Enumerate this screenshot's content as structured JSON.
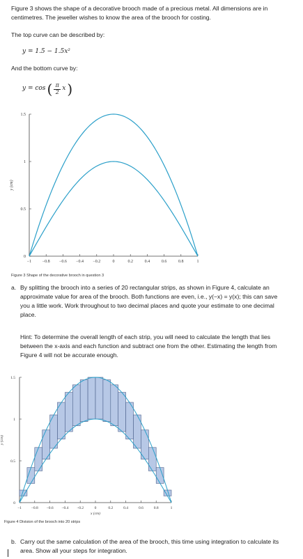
{
  "intro": "Figure 3 shows the shape of a decorative brooch made of a precious metal. All dimensions are in centimetres. The jeweller wishes to know the area of the brooch for costing.",
  "top_curve_label": "The top curve can be described by:",
  "top_curve_eq": "y = 1.5 − 1.5x²",
  "bottom_curve_label": "And the bottom curve by:",
  "bottom_curve_eq_lhs": "y = cos",
  "bottom_curve_eq_frac_num": "π",
  "bottom_curve_eq_frac_den": "2",
  "bottom_curve_eq_var": "x",
  "figure3_caption": "Figure 3   Shape of the decorative brooch in question 3",
  "question_a_num": "a.",
  "question_a": "By splitting the brooch into a series of 20 rectangular strips, as shown in Figure 4, calculate an approximate value for area of the brooch. Both functions are even, i.e., y(−x) = y(x); this can save you a little work. Work throughout to two decimal places and quote your estimate to one decimal place.",
  "hint": "Hint: To determine the overall length of each strip, you will need to calculate the length that lies between the x-axis and each function and subtract one from the other. Estimating the length from Figure 4 will not be accurate enough.",
  "figure4_caption": "Figure 4   Division of the brooch into 20 strips",
  "question_b_num": "b.",
  "question_b": "Carry out the same calculation of the area of the brooch, this time using integration to calculate its area. Show all your steps for integration.",
  "colors": {
    "curve": "#2a9fc9",
    "strip_fill": "#b7c8e6",
    "strip_stroke": "#4a5f8a",
    "axis": "#444444"
  },
  "chart_data": [
    {
      "type": "line",
      "figure": "Figure 3",
      "xlabel": "x (cm)",
      "ylabel": "y (cm)",
      "xlim": [
        -1,
        1
      ],
      "ylim": [
        0,
        1.5
      ],
      "x_ticks": [
        "−1",
        "−0.8",
        "−0.6",
        "−0.4",
        "−0.2",
        "0",
        "0.2",
        "0.4",
        "0.6",
        "0.8",
        "1"
      ],
      "y_ticks": [
        "0",
        "0.5",
        "1",
        "1.5"
      ],
      "series": [
        {
          "function": "1.5 - 1.5x^2",
          "x": [
            -1,
            -0.8,
            -0.6,
            -0.4,
            -0.2,
            0,
            0.2,
            0.4,
            0.6,
            0.8,
            1
          ],
          "y": [
            0,
            0.54,
            0.96,
            1.26,
            1.44,
            1.5,
            1.44,
            1.26,
            0.96,
            0.54,
            0
          ]
        },
        {
          "function": "cos(pi x / 2)",
          "x": [
            -1,
            -0.8,
            -0.6,
            -0.4,
            -0.2,
            0,
            0.2,
            0.4,
            0.6,
            0.8,
            1
          ],
          "y": [
            0,
            0.31,
            0.59,
            0.81,
            0.95,
            1,
            0.95,
            0.81,
            0.59,
            0.31,
            0
          ]
        }
      ],
      "grid": false
    },
    {
      "type": "bar",
      "figure": "Figure 4",
      "xlabel": "x (cm)",
      "ylabel": "y (cm)",
      "xlim": [
        -1,
        1
      ],
      "ylim": [
        0,
        1.5
      ],
      "x_ticks": [
        "−1",
        "−0.8",
        "−0.6",
        "−0.4",
        "−0.2",
        "0",
        "0.2",
        "0.4",
        "0.6",
        "0.8",
        "1"
      ],
      "y_ticks": [
        "0",
        "0.5",
        "1",
        "1.5"
      ],
      "strips": 20,
      "strip_width": 0.1,
      "strip_midpoints": [
        -0.95,
        -0.85,
        -0.75,
        -0.65,
        -0.55,
        -0.45,
        -0.35,
        -0.25,
        -0.15,
        -0.05,
        0.05,
        0.15,
        0.25,
        0.35,
        0.45,
        0.55,
        0.65,
        0.75,
        0.85,
        0.95
      ],
      "strip_top": [
        0.15,
        0.42,
        0.66,
        0.87,
        1.05,
        1.2,
        1.32,
        1.41,
        1.47,
        1.5,
        1.5,
        1.47,
        1.41,
        1.32,
        1.2,
        1.05,
        0.87,
        0.66,
        0.42,
        0.15
      ],
      "strip_bottom": [
        0.08,
        0.23,
        0.38,
        0.52,
        0.65,
        0.76,
        0.85,
        0.92,
        0.97,
        1.0,
        1.0,
        0.97,
        0.92,
        0.85,
        0.76,
        0.65,
        0.52,
        0.38,
        0.23,
        0.08
      ],
      "grid": false
    }
  ]
}
